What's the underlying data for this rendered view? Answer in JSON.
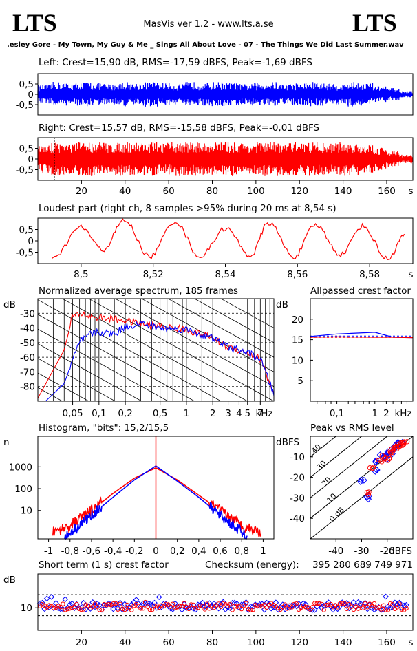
{
  "header": {
    "logo_left": "LTS",
    "logo_right": "LTS",
    "app_title": "MasVis ver 1.2 - www.lts.a.se",
    "file_name": ".esley Gore - My Town, My Guy & Me _ Sings All About Love - 07 - The Things We Did Last Summer.wav"
  },
  "colors": {
    "left": "#0000ff",
    "right": "#ff0000",
    "axis": "#000000"
  },
  "charts": {
    "left": {
      "title": "Left: Crest=15,90 dB, RMS=-17,59 dBFS, Peak=-1,69 dBFS",
      "yticks": [
        "0,5",
        "0",
        "-0,5"
      ]
    },
    "right": {
      "title": "Right: Crest=15,57 dB, RMS=-15,58 dBFS, Peak=-0,01 dBFS",
      "yticks": [
        "0,5",
        "0",
        "-0,5"
      ],
      "xticks": [
        "20",
        "40",
        "60",
        "80",
        "100",
        "120",
        "140",
        "160"
      ],
      "xunit": "s"
    },
    "loudest": {
      "title": "Loudest part (right ch, 8 samples >95% during 20 ms at 8,54 s)",
      "yticks": [
        "0,5",
        "0",
        "-0,5"
      ],
      "xticks": [
        "8,5",
        "8,52",
        "8,54",
        "8,56",
        "8,58"
      ],
      "xunit": "s"
    },
    "spectrum": {
      "title": "Normalized average spectrum, 185 frames",
      "ylabel": "dB",
      "yticks": [
        "-30",
        "-40",
        "-50",
        "-60",
        "-70",
        "-80"
      ],
      "xticks": [
        "0,05",
        "0,1",
        "0,2",
        "0,5",
        "1",
        "2",
        "3",
        "4",
        "5",
        "7"
      ],
      "xunit": "kHz"
    },
    "allpassed": {
      "title": "Allpassed crest factor",
      "ylabel": "dB",
      "yticks": [
        "20",
        "15",
        "10",
        "5"
      ],
      "xticks": [
        "0,1",
        "1",
        "2"
      ],
      "xunit": "kHz"
    },
    "histogram": {
      "title": "Histogram, \"bits\": 15,2/15,5",
      "ylabel": "n",
      "yticks": [
        "1000",
        "100",
        "10"
      ],
      "xticks": [
        "-1",
        "-0,8",
        "-0,6",
        "-0,4",
        "-0,2",
        "0",
        "0,2",
        "0,4",
        "0,6",
        "0,8",
        "1"
      ]
    },
    "peakrms": {
      "title": "Peak vs RMS level",
      "ylabel": "dBFS",
      "yticks": [
        "-10",
        "-20",
        "-30",
        "-40"
      ],
      "xticks": [
        "-40",
        "-30",
        "-20"
      ],
      "xunit": "dBFS",
      "diag_labels": [
        "40",
        "30",
        "20",
        "10",
        "0 dB"
      ]
    },
    "shortcrest": {
      "title": "Short term (1 s) crest factor",
      "checksum_label": "Checksum (energy):",
      "checksum_value": "395 280 689 749 971",
      "ylabel": "dB",
      "yticks": [
        "10"
      ],
      "xticks": [
        "20",
        "40",
        "60",
        "80",
        "100",
        "120",
        "140",
        "160"
      ],
      "xunit": "s"
    }
  },
  "chart_data": [
    {
      "type": "line",
      "title": "Left: Crest=15,90 dB, RMS=-17,59 dBFS, Peak=-1,69 dBFS",
      "x_range": [
        0,
        172
      ],
      "ylim": [
        -1,
        1
      ],
      "series": [
        {
          "name": "Left",
          "envelope": [
            0.45,
            0.6,
            0.55,
            0.6,
            0.55,
            0.5,
            0.6,
            0.55,
            0.6,
            0.55,
            0.5,
            0.6,
            0.55,
            0.6,
            0.55,
            0.5,
            0.55,
            0.6,
            0.5,
            0.55,
            0.6,
            0.55,
            0.5,
            0.6,
            0.55,
            0.4,
            0.3,
            0.15
          ]
        }
      ]
    },
    {
      "type": "line",
      "title": "Right: Crest=15,57 dB, RMS=-15,58 dBFS, Peak=-0,01 dBFS",
      "x_range": [
        0,
        172
      ],
      "ylim": [
        -1,
        1
      ],
      "series": [
        {
          "name": "Right",
          "envelope": [
            0.65,
            0.8,
            0.75,
            0.8,
            0.8,
            0.75,
            0.8,
            0.8,
            0.8,
            0.75,
            0.8,
            0.8,
            0.75,
            0.8,
            0.8,
            0.75,
            0.8,
            0.8,
            0.75,
            0.8,
            0.8,
            0.75,
            0.8,
            0.75,
            0.7,
            0.55,
            0.4,
            0.2
          ]
        }
      ]
    },
    {
      "type": "line",
      "title": "Loudest part (right ch, 8 samples >95% during 20 ms at 8,54 s)",
      "x_range": [
        8.488,
        8.592
      ],
      "ylim": [
        -1,
        1
      ],
      "series": [
        {
          "name": "Right",
          "peaks": [
            [
              8.492,
              -0.8
            ],
            [
              8.5,
              0.6
            ],
            [
              8.506,
              -0.4
            ],
            [
              8.512,
              0.9
            ],
            [
              8.519,
              -0.7
            ],
            [
              8.526,
              0.85
            ],
            [
              8.533,
              -0.7
            ],
            [
              8.54,
              0.55
            ],
            [
              8.547,
              -0.65
            ],
            [
              8.552,
              0.8
            ],
            [
              8.559,
              -0.7
            ],
            [
              8.565,
              0.7
            ],
            [
              8.572,
              -0.6
            ],
            [
              8.578,
              0.65
            ],
            [
              8.585,
              -0.8
            ],
            [
              8.59,
              0.3
            ]
          ]
        }
      ]
    },
    {
      "type": "line",
      "title": "Normalized average spectrum, 185 frames",
      "xlabel": "kHz",
      "ylabel": "dB",
      "xlog": true,
      "x_range": [
        0.02,
        10
      ],
      "ylim": [
        -90,
        -20
      ],
      "series": [
        {
          "name": "Right",
          "x": [
            0.02,
            0.04,
            0.05,
            0.06,
            0.08,
            0.1,
            0.15,
            0.2,
            0.3,
            0.5,
            1,
            2,
            3,
            5,
            7,
            10
          ],
          "values": [
            -88,
            -55,
            -32,
            -30,
            -32,
            -33,
            -34,
            -35,
            -37,
            -39,
            -41,
            -47,
            -53,
            -57,
            -61,
            -85
          ]
        },
        {
          "name": "Left",
          "x": [
            0.02,
            0.04,
            0.05,
            0.06,
            0.08,
            0.1,
            0.15,
            0.2,
            0.3,
            0.5,
            1,
            2,
            3,
            5,
            7,
            10
          ],
          "values": [
            -95,
            -78,
            -62,
            -50,
            -44,
            -43,
            -44,
            -39,
            -37,
            -40,
            -41,
            -47,
            -53,
            -57,
            -61,
            -85
          ]
        }
      ]
    },
    {
      "type": "line",
      "title": "Allpassed crest factor",
      "xlabel": "kHz",
      "ylabel": "dB",
      "xlog": true,
      "x_range": [
        0.02,
        10
      ],
      "ylim": [
        0,
        25
      ],
      "series": [
        {
          "name": "Left",
          "x": [
            0.02,
            0.1,
            1,
            3,
            10
          ],
          "values": [
            15.8,
            16.4,
            16.8,
            15.6,
            15.5
          ]
        },
        {
          "name": "Right",
          "x": [
            0.02,
            0.1,
            1,
            3,
            10
          ],
          "values": [
            15.6,
            15.7,
            15.6,
            15.6,
            15.5
          ]
        }
      ],
      "reference": [
        {
          "name": "Left crest",
          "value": 15.9
        },
        {
          "name": "Right crest",
          "value": 15.57
        }
      ]
    },
    {
      "type": "line",
      "title": "Histogram, \"bits\": 15,2/15,5",
      "ylabel": "n",
      "ylog": true,
      "x_range": [
        -1.1,
        1.1
      ],
      "series": [
        {
          "name": "Right",
          "x": [
            -0.96,
            -0.8,
            -0.6,
            -0.4,
            -0.2,
            0,
            0.2,
            0.4,
            0.6,
            0.8,
            0.98
          ],
          "values": [
            1,
            2,
            10,
            60,
            300,
            900,
            250,
            50,
            10,
            2,
            1
          ]
        },
        {
          "name": "Left",
          "x": [
            -0.85,
            -0.8,
            -0.6,
            -0.4,
            -0.2,
            0,
            0.2,
            0.4,
            0.6,
            0.8,
            0.85
          ],
          "values": [
            0.5,
            1,
            6,
            40,
            250,
            1100,
            220,
            40,
            6,
            1,
            0.5
          ]
        }
      ]
    },
    {
      "type": "scatter",
      "title": "Peak vs RMS level",
      "xlabel": "dBFS",
      "ylabel": "dBFS",
      "x_range": [
        -50,
        -10
      ],
      "ylim": [
        -50,
        0
      ],
      "series": [
        {
          "name": "Left",
          "points": [
            [
              -25,
              -17
            ],
            [
              -24,
              -12
            ],
            [
              -22,
              -10
            ],
            [
              -20,
              -9
            ],
            [
              -18,
              -6
            ],
            [
              -17,
              -5
            ],
            [
              -16,
              -4
            ],
            [
              -19,
              -8
            ],
            [
              -21,
              -11
            ],
            [
              -30,
              -22
            ],
            [
              -28,
              -30
            ],
            [
              -15,
              -3
            ]
          ]
        },
        {
          "name": "Right",
          "points": [
            [
              -23,
              -12
            ],
            [
              -21,
              -10
            ],
            [
              -19,
              -8
            ],
            [
              -18,
              -7
            ],
            [
              -16,
              -5
            ],
            [
              -15,
              -4
            ],
            [
              -14,
              -3
            ],
            [
              -17,
              -6
            ],
            [
              -20,
              -11
            ],
            [
              -27,
              -28
            ],
            [
              -26,
              -15
            ],
            [
              -13,
              -2
            ]
          ]
        }
      ]
    },
    {
      "type": "scatter",
      "title": "Short term (1 s) crest factor",
      "ylabel": "dB",
      "x_range": [
        0,
        172
      ],
      "ylim": [
        0,
        25
      ],
      "series": [
        {
          "name": "Left",
          "band": [
            9,
            12.5
          ]
        },
        {
          "name": "Right",
          "band": [
            9,
            12
          ]
        }
      ],
      "reference": [
        15.9,
        15.57
      ]
    }
  ]
}
